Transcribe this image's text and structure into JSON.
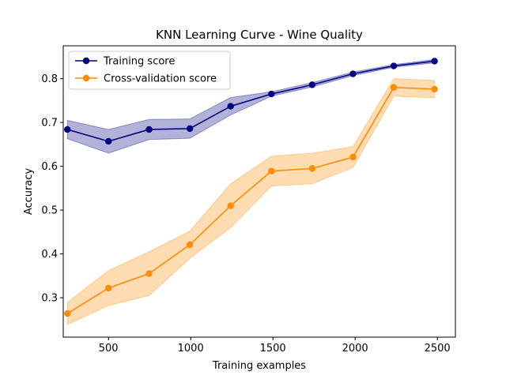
{
  "chart_data": {
    "type": "line",
    "title": "KNN Learning Curve - Wine Quality",
    "xlabel": "Training examples",
    "ylabel": "Accuracy",
    "xlim": [
      225,
      2610
    ],
    "ylim": [
      0.21,
      0.875
    ],
    "xticks": [
      500,
      1000,
      1500,
      2000,
      2500
    ],
    "yticks": [
      0.3,
      0.4,
      0.5,
      0.6,
      0.7,
      0.8
    ],
    "x": [
      250,
      500,
      747,
      995,
      1243,
      1491,
      1739,
      1987,
      2235,
      2483
    ],
    "legend_position": "upper-left",
    "grid": false,
    "series": [
      {
        "name": "Training score",
        "color": "#000080",
        "values": [
          0.684,
          0.657,
          0.684,
          0.686,
          0.737,
          0.765,
          0.786,
          0.811,
          0.829,
          0.84
        ],
        "lower": [
          0.663,
          0.63,
          0.661,
          0.664,
          0.717,
          0.76,
          0.781,
          0.807,
          0.826,
          0.836
        ],
        "upper": [
          0.705,
          0.684,
          0.707,
          0.708,
          0.757,
          0.77,
          0.791,
          0.815,
          0.832,
          0.844
        ]
      },
      {
        "name": "Cross-validation score",
        "color": "#ff8c00",
        "values": [
          0.264,
          0.322,
          0.355,
          0.421,
          0.51,
          0.589,
          0.595,
          0.621,
          0.78,
          0.776
        ],
        "lower": [
          0.239,
          0.282,
          0.305,
          0.39,
          0.46,
          0.555,
          0.56,
          0.597,
          0.76,
          0.756
        ],
        "upper": [
          0.289,
          0.362,
          0.405,
          0.452,
          0.56,
          0.623,
          0.63,
          0.645,
          0.8,
          0.796
        ]
      }
    ]
  }
}
